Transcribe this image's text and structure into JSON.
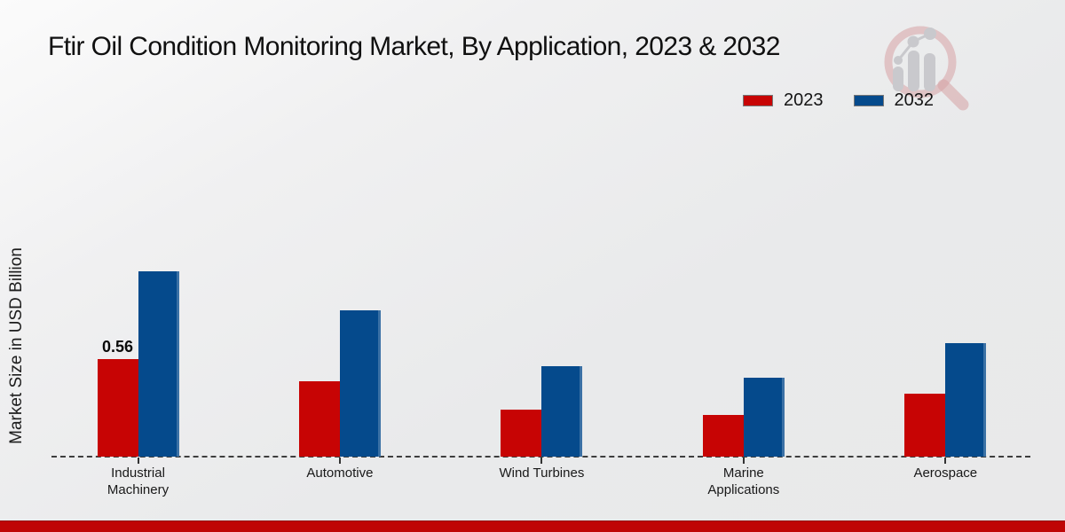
{
  "header": {
    "title": "Ftir Oil Condition Monitoring Market, By Application, 2023 & 2032"
  },
  "chart_data": {
    "type": "bar",
    "title": "Ftir Oil Condition Monitoring Market, By Application, 2023 & 2032",
    "xlabel": "",
    "ylabel": "Market Size in USD Billion",
    "categories": [
      "Industrial Machinery",
      "Automotive",
      "Wind Turbines",
      "Marine Applications",
      "Aerospace"
    ],
    "series": [
      {
        "name": "2023",
        "color": "#c70404",
        "values": [
          0.56,
          0.43,
          0.27,
          0.24,
          0.36
        ]
      },
      {
        "name": "2032",
        "color": "#054a8c",
        "values": [
          1.06,
          0.84,
          0.52,
          0.45,
          0.65
        ]
      }
    ],
    "data_labels": [
      {
        "series": "2023",
        "category": "Industrial Machinery",
        "text": "0.56"
      }
    ],
    "ylim": [
      0,
      1.45
    ],
    "grid": false,
    "legend_position": "top-right",
    "axis_baseline": "dashed",
    "yticks_visible": false
  },
  "legend": {
    "items": [
      {
        "label": "2023",
        "color": "#c70404"
      },
      {
        "label": "2032",
        "color": "#054a8c"
      }
    ]
  },
  "icons": {
    "watermark": "magnifier-growth-chart-logo"
  },
  "colors": {
    "series_2023": "#c70404",
    "series_2032": "#054a8c",
    "footer_accent": "#bf0505",
    "baseline": "#3e3e3e",
    "background": "#e9eaeb"
  }
}
